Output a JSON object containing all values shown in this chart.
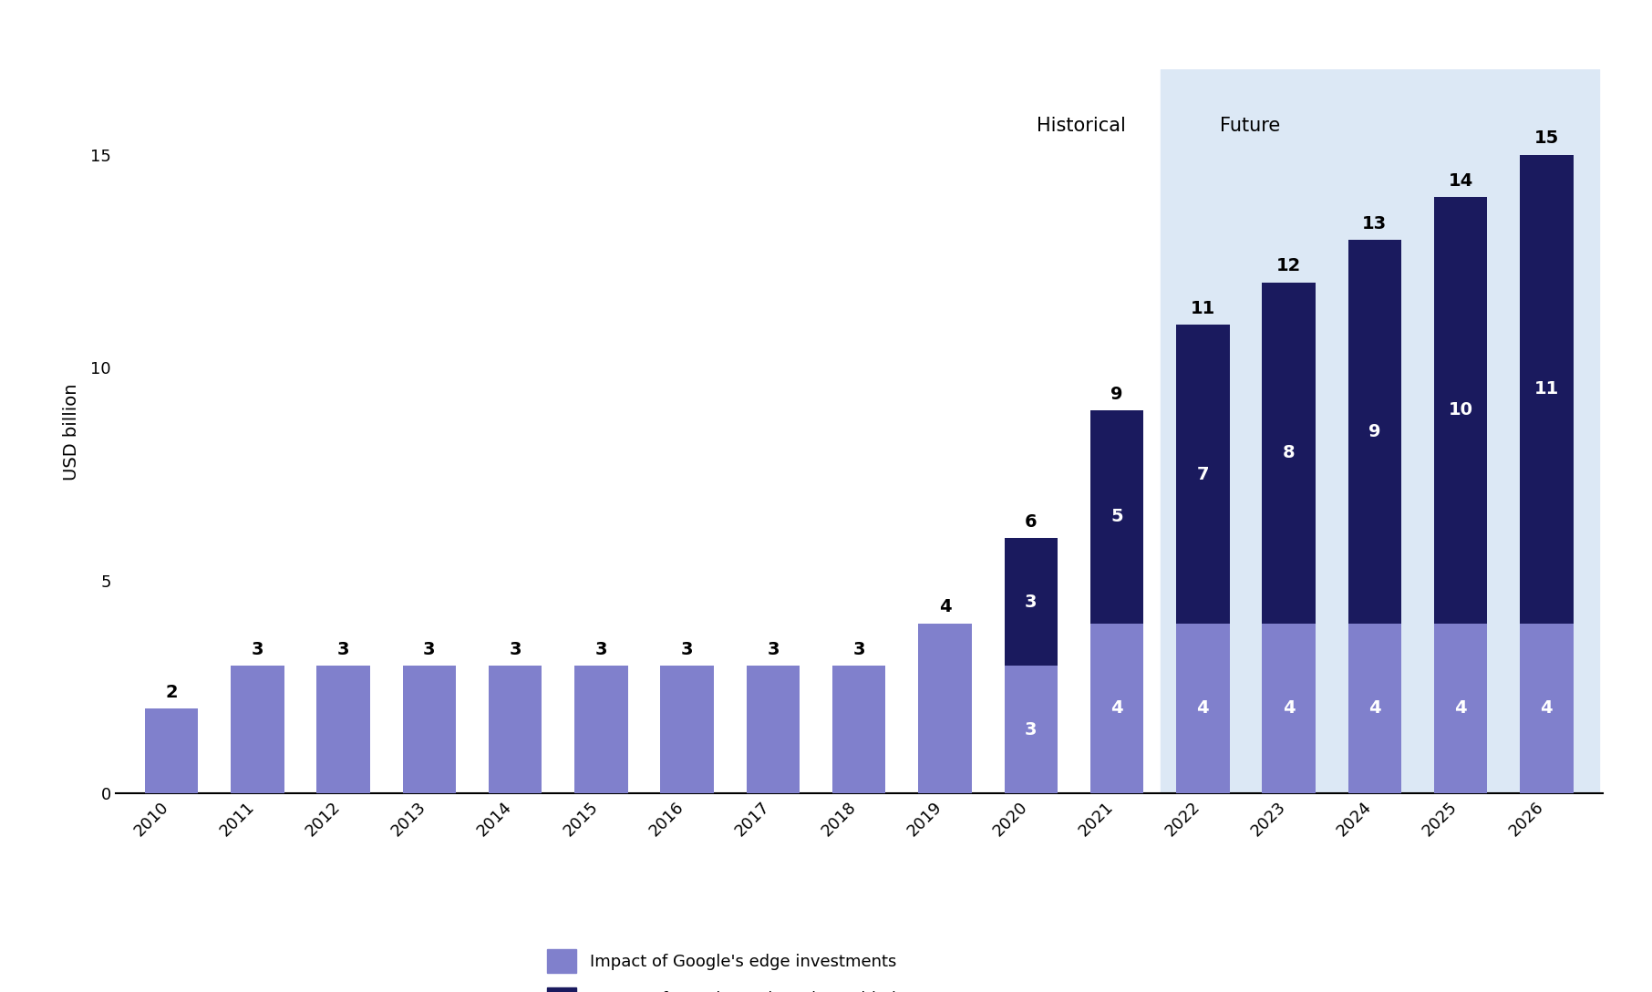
{
  "years": [
    "2010",
    "2011",
    "2012",
    "2013",
    "2014",
    "2015",
    "2016",
    "2017",
    "2018",
    "2019",
    "2020",
    "2021",
    "2022",
    "2023",
    "2024",
    "2025",
    "2026"
  ],
  "edge_values": [
    2,
    3,
    3,
    3,
    3,
    3,
    3,
    3,
    3,
    4,
    3,
    4,
    4,
    4,
    4,
    4,
    4
  ],
  "submarine_values": [
    0,
    0,
    0,
    0,
    0,
    0,
    0,
    0,
    0,
    0,
    3,
    5,
    7,
    8,
    9,
    10,
    11
  ],
  "total_labels": [
    "2",
    "3",
    "3",
    "3",
    "3",
    "3",
    "3",
    "3",
    "3",
    "4",
    "6",
    "9",
    "11",
    "12",
    "13",
    "14",
    "15"
  ],
  "edge_labels": [
    null,
    null,
    null,
    null,
    null,
    null,
    null,
    null,
    null,
    null,
    "3",
    "4",
    "4",
    "4",
    "4",
    "4",
    "4"
  ],
  "submarine_labels": [
    null,
    null,
    null,
    null,
    null,
    null,
    null,
    null,
    null,
    null,
    "3",
    "5",
    "7",
    "8",
    "9",
    "10",
    "11"
  ],
  "future_idx": 12,
  "edge_color": "#8080CC",
  "submarine_color": "#1a1a5e",
  "future_bg_color": "#dce8f5",
  "background_color": "#ffffff",
  "ylabel": "USD billion",
  "ylim": [
    0,
    17.0
  ],
  "yticks": [
    0,
    5,
    10,
    15
  ],
  "historical_label": "Historical",
  "future_label": "Future",
  "legend_edge": "Impact of Google's edge investments",
  "legend_submarine": "Impact of Google's submarine cable investments",
  "bar_width": 0.62,
  "label_fontsize": 14,
  "tick_fontsize": 13,
  "legend_fontsize": 13,
  "annotation_fontsize": 14,
  "header_fontsize": 15
}
